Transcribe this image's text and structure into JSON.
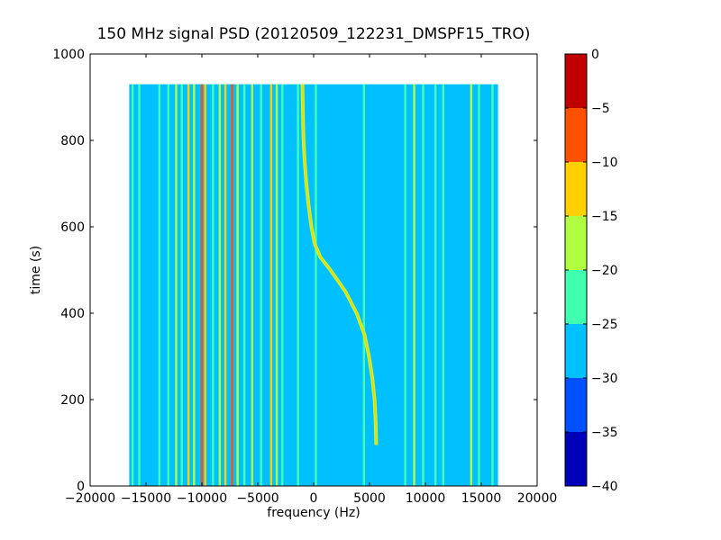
{
  "chart_data": {
    "type": "heatmap",
    "title": "150 MHz signal PSD (20120509_122231_DMSPF15_TRO)",
    "xlabel": "frequency (Hz)",
    "ylabel": "time (s)",
    "xlim": [
      -20000,
      20000
    ],
    "ylim": [
      0,
      1000
    ],
    "x_ticks": [
      -20000,
      -15000,
      -10000,
      -5000,
      0,
      5000,
      10000,
      15000,
      20000
    ],
    "y_ticks": [
      0,
      200,
      400,
      600,
      800,
      1000
    ],
    "data_extent": {
      "x": [
        -16500,
        16500
      ],
      "t": [
        0,
        930
      ]
    },
    "colormap": "jet",
    "colorbar": {
      "levels": [
        -40,
        -35,
        -30,
        -25,
        -20,
        -15,
        -10,
        -5,
        0
      ],
      "tick_labels": [
        "0",
        "−5",
        "−10",
        "−15",
        "−20",
        "−25",
        "−30",
        "−35",
        "−40"
      ],
      "colors": [
        "#0000b8",
        "#0050ff",
        "#00c0ff",
        "#40ffb0",
        "#b0ff40",
        "#ffd000",
        "#ff5000",
        "#c00000"
      ]
    },
    "background_level": -27.5,
    "doppler_trace": [
      {
        "t": 95,
        "f": 5600
      },
      {
        "t": 150,
        "f": 5550
      },
      {
        "t": 200,
        "f": 5450
      },
      {
        "t": 250,
        "f": 5250
      },
      {
        "t": 300,
        "f": 4950
      },
      {
        "t": 350,
        "f": 4550
      },
      {
        "t": 400,
        "f": 3850
      },
      {
        "t": 450,
        "f": 2850
      },
      {
        "t": 500,
        "f": 1500
      },
      {
        "t": 530,
        "f": 600
      },
      {
        "t": 560,
        "f": 100
      },
      {
        "t": 600,
        "f": -200
      },
      {
        "t": 650,
        "f": -450
      },
      {
        "t": 700,
        "f": -650
      },
      {
        "t": 750,
        "f": -800
      },
      {
        "t": 800,
        "f": -900
      },
      {
        "t": 850,
        "f": -950
      },
      {
        "t": 930,
        "f": -1000
      }
    ],
    "steady_lines": [
      {
        "f": -16200,
        "level": -22
      },
      {
        "f": -15600,
        "level": -22
      },
      {
        "f": -13800,
        "level": -22
      },
      {
        "f": -13000,
        "level": -22
      },
      {
        "f": -12300,
        "level": -17
      },
      {
        "f": -11800,
        "level": -22
      },
      {
        "f": -11200,
        "level": -12
      },
      {
        "f": -10700,
        "level": -17
      },
      {
        "f": -10000,
        "level": -7
      },
      {
        "f": -9700,
        "level": -12
      },
      {
        "f": -9000,
        "level": -22
      },
      {
        "f": -8400,
        "level": -17
      },
      {
        "f": -7900,
        "level": -12
      },
      {
        "f": -7300,
        "level": -7
      },
      {
        "f": -6800,
        "level": -17
      },
      {
        "f": -6200,
        "level": -22
      },
      {
        "f": -5500,
        "level": -17
      },
      {
        "f": -4700,
        "level": -22
      },
      {
        "f": -3800,
        "level": -12
      },
      {
        "f": -3300,
        "level": -17
      },
      {
        "f": -2800,
        "level": -22
      },
      {
        "f": -1400,
        "level": -22
      },
      {
        "f": 200,
        "level": -22
      },
      {
        "f": 4500,
        "level": -22
      },
      {
        "f": 8200,
        "level": -22
      },
      {
        "f": 9000,
        "level": -17
      },
      {
        "f": 9800,
        "level": -22
      },
      {
        "f": 10900,
        "level": -22
      },
      {
        "f": 11600,
        "level": -22
      },
      {
        "f": 14100,
        "level": -17
      },
      {
        "f": 14800,
        "level": -22
      },
      {
        "f": 16000,
        "level": -22
      }
    ]
  }
}
